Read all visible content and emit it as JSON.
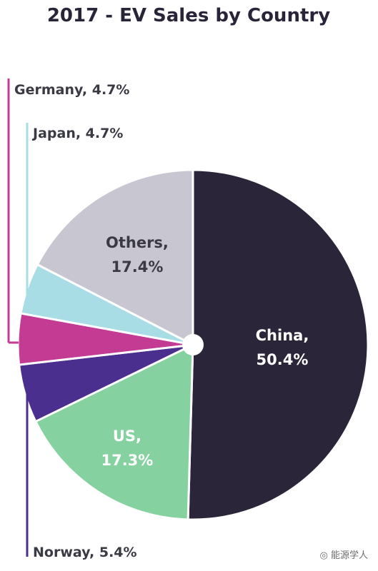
{
  "chart_data": {
    "type": "pie",
    "title": "2017 - EV Sales by Country",
    "slices": [
      {
        "name": "China",
        "value": 50.4,
        "label_line1": "China,",
        "label_line2": "50.4%",
        "color": "#2b2539",
        "text_color": "#ffffff"
      },
      {
        "name": "US",
        "value": 17.3,
        "label_line1": "US,",
        "label_line2": "17.3%",
        "color": "#86d1a0",
        "text_color": "#ffffff"
      },
      {
        "name": "Norway",
        "value": 5.4,
        "label": "Norway, 5.4%",
        "color": "#4b2f8f"
      },
      {
        "name": "Germany",
        "value": 4.7,
        "label": "Germany, 4.7%",
        "color": "#c43b94"
      },
      {
        "name": "Japan",
        "value": 4.7,
        "label": "Japan, 4.7%",
        "color": "#a9dde6"
      },
      {
        "name": "Others",
        "value": 17.4,
        "label_line1": "Others,",
        "label_line2": "17.4%",
        "color": "#c8c6d0",
        "text_color": "#3a3a44"
      }
    ]
  },
  "watermark": {
    "icon": "wechat-icon",
    "text": "能源学人"
  }
}
